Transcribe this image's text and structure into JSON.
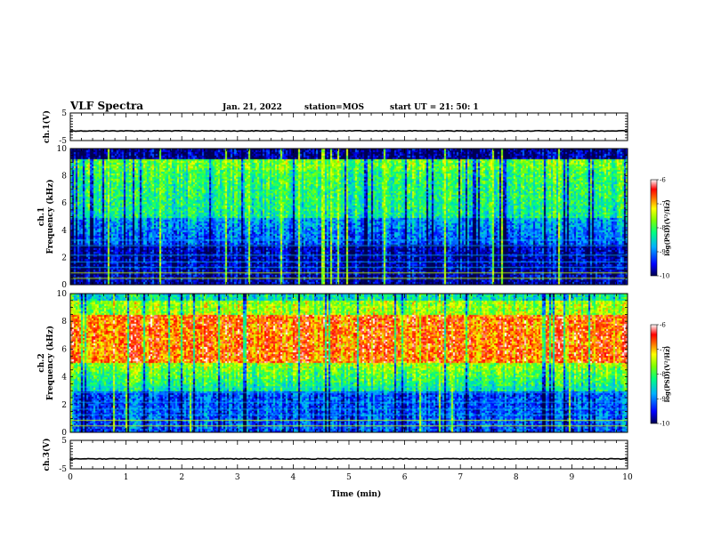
{
  "header": {
    "title": "VLF Spectra",
    "date": "Jan. 21, 2022",
    "station": "station=MOS",
    "start": "start  UT =  21: 50: 1"
  },
  "chart_data": [
    {
      "type": "line",
      "name": "ch1-waveform",
      "ylabel": "ch.1(V)",
      "ylim": [
        -5,
        5
      ],
      "yticks": [
        "5",
        "-5"
      ],
      "xlim": [
        0,
        10
      ],
      "baseline": -1.5
    },
    {
      "type": "heatmap",
      "name": "ch1-spectrogram",
      "ylabel": "ch.1\nFrequency (kHz)",
      "ylim": [
        0,
        10
      ],
      "yticks": [
        "0",
        "2",
        "4",
        "6",
        "8",
        "10"
      ],
      "xlim": [
        0,
        10
      ],
      "colorbar": {
        "min": -10,
        "max": -6,
        "ticks": [
          "-6",
          "-7",
          "-8",
          "-9",
          "-10"
        ],
        "label": "log(PSD)(V²/Hz)"
      }
    },
    {
      "type": "heatmap",
      "name": "ch2-spectrogram",
      "ylabel": "ch.2\nFrequency (kHz)",
      "ylim": [
        0,
        10
      ],
      "yticks": [
        "0",
        "2",
        "4",
        "6",
        "8",
        "10"
      ],
      "xlim": [
        0,
        10
      ],
      "colorbar": {
        "min": -10,
        "max": -6,
        "ticks": [
          "-6",
          "-7",
          "-8",
          "-9",
          "-10"
        ],
        "label": "log(PSD)(V²/Hz)"
      }
    },
    {
      "type": "line",
      "name": "ch3-waveform",
      "ylabel": "ch.3(V)",
      "ylim": [
        -5,
        5
      ],
      "yticks": [
        "5",
        "-5"
      ],
      "xlim": [
        0,
        10
      ],
      "baseline": -1.5
    }
  ],
  "xaxis": {
    "label": "Time (min)",
    "ticks": [
      "0",
      "1",
      "2",
      "3",
      "4",
      "5",
      "6",
      "7",
      "8",
      "9",
      "10"
    ]
  },
  "colorbar_label": "log(PSD)(V²/Hz)"
}
